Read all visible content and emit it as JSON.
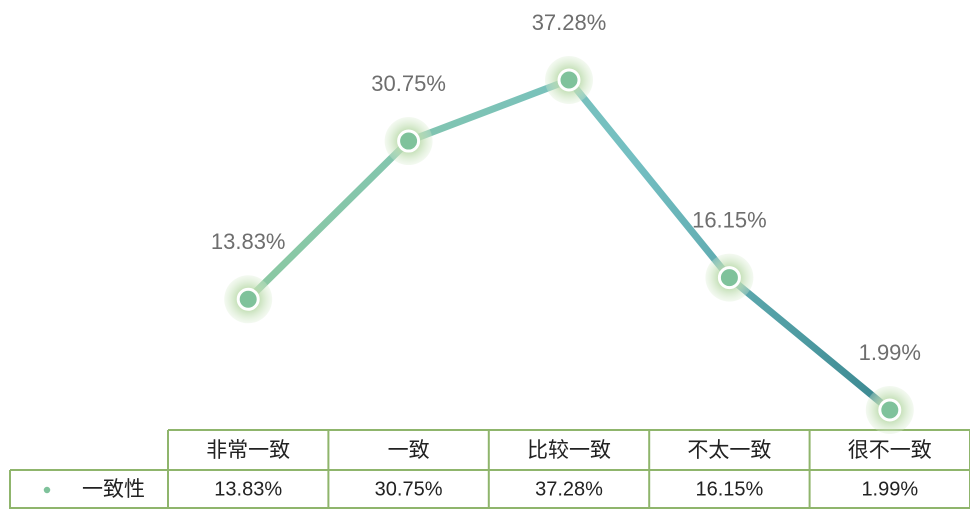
{
  "chart_data": {
    "type": "line",
    "categories": [
      "非常一致",
      "一致",
      "比较一致",
      "不太一致",
      "很不一致"
    ],
    "series": [
      {
        "name": "一致性",
        "color": "#7fc29b",
        "values": [
          13.83,
          30.75,
          37.28,
          16.15,
          1.99
        ],
        "value_labels": [
          "13.83%",
          "30.75%",
          "37.28%",
          "16.15%",
          "1.99%"
        ]
      }
    ]
  }
}
